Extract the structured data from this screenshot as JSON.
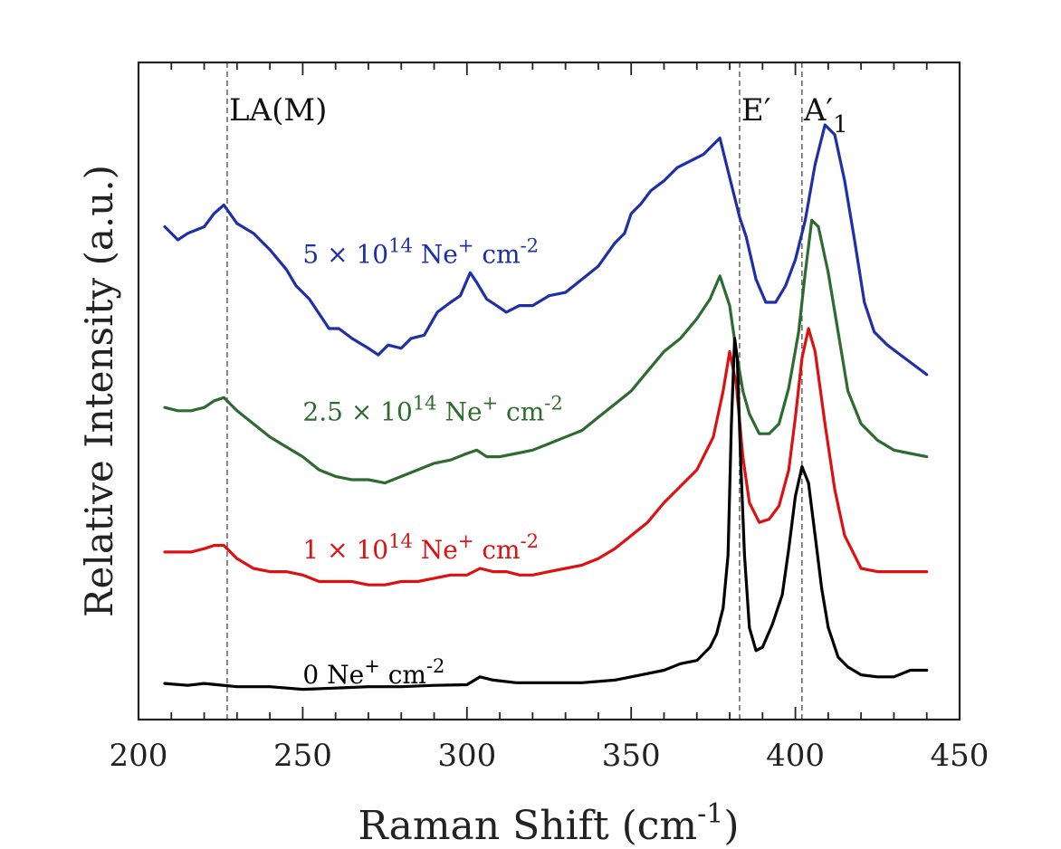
{
  "chart_data": {
    "type": "line",
    "title": "",
    "xlabel_main": "Raman Shift (cm",
    "xlabel_sup": "-1",
    "xlabel_close": ")",
    "ylabel": "Relative Intensity (a.u.)",
    "xlim": [
      200,
      450
    ],
    "ylim": [
      0,
      100
    ],
    "x_ticks": [
      200,
      250,
      300,
      350,
      400,
      450
    ],
    "y_ticks_shown": false,
    "reference_lines": [
      {
        "name": "LA(M)",
        "x": 227,
        "label": "LA(M)",
        "sub": ""
      },
      {
        "name": "E-prime",
        "x": 383,
        "label": "E′",
        "sub": ""
      },
      {
        "name": "A1-prime",
        "x": 402,
        "label": "A′",
        "sub": "1"
      }
    ],
    "series": [
      {
        "name": "5e14",
        "color": "#1f2fa8",
        "label_parts": [
          "5 × 10",
          "14",
          " Ne",
          "+",
          " cm",
          "-2"
        ],
        "label_anchor": [
          250,
          69.5
        ],
        "points": [
          [
            208,
            75
          ],
          [
            212,
            73
          ],
          [
            215,
            74
          ],
          [
            220,
            75
          ],
          [
            223,
            77
          ],
          [
            226,
            78.3
          ],
          [
            230,
            75.5
          ],
          [
            235,
            74
          ],
          [
            240,
            71.5
          ],
          [
            245,
            68.5
          ],
          [
            248,
            66
          ],
          [
            252,
            64
          ],
          [
            256,
            61
          ],
          [
            258,
            59.5
          ],
          [
            261,
            59.5
          ],
          [
            265,
            58
          ],
          [
            270,
            56.5
          ],
          [
            273,
            55.5
          ],
          [
            276,
            57
          ],
          [
            280,
            56.5
          ],
          [
            283,
            58
          ],
          [
            287,
            58.5
          ],
          [
            291,
            62
          ],
          [
            295,
            63.5
          ],
          [
            298,
            64.5
          ],
          [
            301,
            68
          ],
          [
            303,
            66.5
          ],
          [
            306,
            64
          ],
          [
            309,
            63
          ],
          [
            312,
            62
          ],
          [
            316,
            63
          ],
          [
            320,
            63
          ],
          [
            325,
            64.5
          ],
          [
            330,
            65
          ],
          [
            335,
            67
          ],
          [
            340,
            69
          ],
          [
            345,
            72.5
          ],
          [
            348,
            74
          ],
          [
            350,
            77
          ],
          [
            353,
            78.5
          ],
          [
            356,
            80.5
          ],
          [
            360,
            82
          ],
          [
            364,
            84
          ],
          [
            368,
            85
          ],
          [
            372,
            86
          ],
          [
            375,
            87.5
          ],
          [
            377,
            88.5
          ],
          [
            380,
            82.5
          ],
          [
            383,
            76.5
          ],
          [
            385,
            73.5
          ],
          [
            388,
            67
          ],
          [
            391,
            63.5
          ],
          [
            394,
            63.5
          ],
          [
            397,
            66
          ],
          [
            400,
            70
          ],
          [
            403,
            76
          ],
          [
            406,
            84.5
          ],
          [
            409,
            90.5
          ],
          [
            412,
            89
          ],
          [
            415,
            82
          ],
          [
            418,
            73
          ],
          [
            421,
            63.5
          ],
          [
            424,
            59
          ],
          [
            428,
            57
          ],
          [
            432,
            55.5
          ],
          [
            436,
            54
          ],
          [
            440,
            52.5
          ]
        ]
      },
      {
        "name": "2.5e14",
        "color": "#2e6b30",
        "label_parts": [
          "2.5 × 10",
          "14",
          " Ne",
          "+",
          " cm",
          "-2"
        ],
        "label_anchor": [
          250,
          45.5
        ],
        "points": [
          [
            208,
            47.5
          ],
          [
            212,
            47
          ],
          [
            216,
            47
          ],
          [
            220,
            47.5
          ],
          [
            223,
            48.5
          ],
          [
            226,
            49
          ],
          [
            230,
            47
          ],
          [
            235,
            45
          ],
          [
            240,
            43
          ],
          [
            245,
            41.5
          ],
          [
            250,
            40
          ],
          [
            255,
            38
          ],
          [
            260,
            37
          ],
          [
            265,
            36.5
          ],
          [
            270,
            36.5
          ],
          [
            275,
            36
          ],
          [
            280,
            37
          ],
          [
            285,
            38
          ],
          [
            290,
            39
          ],
          [
            295,
            39.5
          ],
          [
            300,
            40.5
          ],
          [
            303,
            41
          ],
          [
            306,
            40
          ],
          [
            310,
            40
          ],
          [
            315,
            40.5
          ],
          [
            320,
            41
          ],
          [
            325,
            42
          ],
          [
            330,
            43
          ],
          [
            335,
            44
          ],
          [
            340,
            46
          ],
          [
            345,
            48
          ],
          [
            350,
            50
          ],
          [
            355,
            53
          ],
          [
            360,
            56
          ],
          [
            365,
            58
          ],
          [
            370,
            61
          ],
          [
            374,
            64
          ],
          [
            377,
            67.5
          ],
          [
            380,
            63
          ],
          [
            382,
            56
          ],
          [
            384,
            50
          ],
          [
            386,
            46.5
          ],
          [
            389,
            43.5
          ],
          [
            392,
            43.5
          ],
          [
            395,
            45
          ],
          [
            398,
            50.5
          ],
          [
            401,
            59
          ],
          [
            403,
            68
          ],
          [
            405,
            76
          ],
          [
            407,
            75
          ],
          [
            410,
            68
          ],
          [
            413,
            59
          ],
          [
            416,
            50
          ],
          [
            420,
            45
          ],
          [
            425,
            42.5
          ],
          [
            430,
            41
          ],
          [
            435,
            40.5
          ],
          [
            440,
            40
          ]
        ]
      },
      {
        "name": "1e14",
        "color": "#dd1111",
        "label_parts": [
          "1 × 10",
          "14",
          " Ne",
          "+",
          " cm",
          "-2"
        ],
        "label_anchor": [
          250,
          24.5
        ],
        "points": [
          [
            208,
            25.5
          ],
          [
            212,
            25.5
          ],
          [
            216,
            25.5
          ],
          [
            220,
            26
          ],
          [
            223,
            26.5
          ],
          [
            226,
            26.5
          ],
          [
            230,
            24.5
          ],
          [
            235,
            23
          ],
          [
            240,
            22.5
          ],
          [
            245,
            22.5
          ],
          [
            250,
            22
          ],
          [
            255,
            21
          ],
          [
            260,
            21
          ],
          [
            265,
            21
          ],
          [
            270,
            20.5
          ],
          [
            275,
            20.5
          ],
          [
            280,
            21
          ],
          [
            285,
            21
          ],
          [
            290,
            21.5
          ],
          [
            295,
            22
          ],
          [
            300,
            22
          ],
          [
            304,
            23
          ],
          [
            308,
            22.5
          ],
          [
            312,
            22.5
          ],
          [
            316,
            22
          ],
          [
            320,
            22
          ],
          [
            325,
            22.5
          ],
          [
            330,
            23
          ],
          [
            335,
            23.5
          ],
          [
            340,
            24.5
          ],
          [
            345,
            26
          ],
          [
            350,
            28
          ],
          [
            355,
            30
          ],
          [
            360,
            33
          ],
          [
            365,
            35.5
          ],
          [
            370,
            38
          ],
          [
            375,
            43
          ],
          [
            378,
            50
          ],
          [
            380,
            56
          ],
          [
            382,
            51
          ],
          [
            384,
            40
          ],
          [
            386,
            33
          ],
          [
            389,
            30
          ],
          [
            392,
            30.5
          ],
          [
            395,
            32.5
          ],
          [
            398,
            38
          ],
          [
            400,
            46
          ],
          [
            402,
            55
          ],
          [
            404,
            59.5
          ],
          [
            406,
            56
          ],
          [
            409,
            45
          ],
          [
            412,
            35
          ],
          [
            415,
            28
          ],
          [
            420,
            23
          ],
          [
            425,
            22.5
          ],
          [
            430,
            22.5
          ],
          [
            435,
            22.5
          ],
          [
            440,
            22.5
          ]
        ]
      },
      {
        "name": "0",
        "color": "#000000",
        "label_parts": [
          "0 Ne",
          "+",
          " cm",
          "-2",
          "",
          ""
        ],
        "label_anchor": [
          250,
          5.5
        ],
        "points": [
          [
            208,
            5.5
          ],
          [
            215,
            5.2
          ],
          [
            220,
            5.5
          ],
          [
            230,
            5
          ],
          [
            240,
            5
          ],
          [
            250,
            4.6
          ],
          [
            260,
            4.8
          ],
          [
            270,
            5
          ],
          [
            280,
            5
          ],
          [
            290,
            5.2
          ],
          [
            300,
            5.3
          ],
          [
            304,
            6.5
          ],
          [
            308,
            6
          ],
          [
            315,
            5.6
          ],
          [
            325,
            5.6
          ],
          [
            335,
            5.6
          ],
          [
            345,
            6
          ],
          [
            350,
            6.5
          ],
          [
            355,
            7
          ],
          [
            360,
            7.5
          ],
          [
            365,
            8.5
          ],
          [
            370,
            9
          ],
          [
            374,
            11
          ],
          [
            376,
            13
          ],
          [
            378,
            17
          ],
          [
            379.5,
            25
          ],
          [
            380.5,
            45
          ],
          [
            381.5,
            58
          ],
          [
            382.3,
            55
          ],
          [
            383.3,
            40
          ],
          [
            384.5,
            25
          ],
          [
            386,
            14
          ],
          [
            388,
            10.5
          ],
          [
            390,
            11
          ],
          [
            393,
            14.5
          ],
          [
            396,
            19
          ],
          [
            398,
            26
          ],
          [
            400,
            34
          ],
          [
            402,
            38.5
          ],
          [
            404,
            36
          ],
          [
            406,
            28
          ],
          [
            408,
            20
          ],
          [
            410,
            14
          ],
          [
            413,
            9.5
          ],
          [
            416,
            8
          ],
          [
            420,
            6.8
          ],
          [
            425,
            6.5
          ],
          [
            430,
            6.5
          ],
          [
            435,
            7.5
          ],
          [
            440,
            7.5
          ]
        ]
      }
    ]
  }
}
